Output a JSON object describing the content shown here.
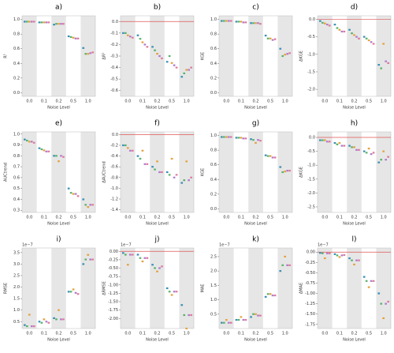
{
  "chart_data": [
    {
      "type": "box",
      "label": "a)",
      "ylabel": "R²",
      "xlabel": "Noise Level",
      "categories": [
        "0.0",
        "0.1",
        "0.2",
        "0.5",
        "1.0"
      ],
      "ylim": [
        -0.05,
        1.05
      ],
      "yticks": [
        {
          "value": 0,
          "label": "0.0"
        },
        0.2,
        0.4,
        0.6,
        0.8,
        {
          "value": 1,
          "label": "1.0"
        }
      ],
      "series": [
        {
          "color": "#3a8fb7",
          "values": [
            0.97,
            0.96,
            0.93,
            0.77,
            0.61
          ]
        },
        {
          "color": "#59b36b",
          "values": [
            0.97,
            0.96,
            0.94,
            0.76,
            0.53
          ]
        },
        {
          "color": "#e5a13b",
          "values": [
            0.97,
            0.96,
            0.94,
            0.75,
            0.53
          ]
        },
        {
          "color": "#b07ad0",
          "values": [
            0.97,
            0.96,
            0.94,
            0.74,
            0.54
          ]
        },
        {
          "color": "#e07a9a",
          "values": [
            0.97,
            0.96,
            0.94,
            0.74,
            0.55
          ]
        }
      ]
    },
    {
      "type": "box",
      "label": "b)",
      "ylabel": "ΔR²",
      "xlabel": "Noise Level",
      "categories": [
        "0.0",
        "0.1",
        "0.2",
        "0.5",
        "1.0"
      ],
      "refline": 0,
      "ylim": [
        -0.65,
        0.05
      ],
      "yticks": [
        {
          "value": 0,
          "label": "0.0"
        },
        -0.1,
        -0.2,
        -0.3,
        -0.4,
        -0.5,
        -0.6
      ],
      "series": [
        {
          "color": "#3a8fb7",
          "values": [
            -0.1,
            -0.12,
            -0.22,
            -0.35,
            -0.48
          ]
        },
        {
          "color": "#59b36b",
          "values": [
            -0.1,
            -0.15,
            -0.25,
            -0.3,
            -0.45
          ]
        },
        {
          "color": "#e5a13b",
          "values": [
            -0.12,
            -0.18,
            -0.28,
            -0.36,
            -0.42
          ]
        },
        {
          "color": "#b07ad0",
          "values": [
            -0.13,
            -0.2,
            -0.3,
            -0.38,
            -0.42
          ]
        },
        {
          "color": "#e07a9a",
          "values": [
            -0.14,
            -0.22,
            -0.32,
            -0.4,
            -0.4
          ]
        }
      ]
    },
    {
      "type": "box",
      "label": "c)",
      "ylabel": "KGE",
      "xlabel": "Noise Level",
      "categories": [
        "0.0",
        "0.1",
        "0.2",
        "0.5",
        "1.0"
      ],
      "ylim": [
        -0.05,
        1.05
      ],
      "yticks": [
        {
          "value": 0,
          "label": "0.0"
        },
        0.2,
        0.4,
        0.6,
        0.8,
        {
          "value": 1,
          "label": "1.0"
        }
      ],
      "series": [
        {
          "color": "#3a8fb7",
          "values": [
            0.98,
            0.97,
            0.95,
            0.78,
            0.6
          ]
        },
        {
          "color": "#59b36b",
          "values": [
            0.98,
            0.97,
            0.95,
            0.74,
            0.5
          ]
        },
        {
          "color": "#e5a13b",
          "values": [
            0.98,
            0.97,
            0.95,
            0.74,
            0.52
          ]
        },
        {
          "color": "#b07ad0",
          "values": [
            0.98,
            0.96,
            0.95,
            0.72,
            0.53
          ]
        },
        {
          "color": "#e07a9a",
          "values": [
            0.98,
            0.96,
            0.94,
            0.73,
            0.54
          ]
        }
      ]
    },
    {
      "type": "box",
      "label": "d)",
      "ylabel": "ΔKGE",
      "xlabel": "Noise Level",
      "categories": [
        "0.0",
        "0.1",
        "0.2",
        "0.5",
        "1.0"
      ],
      "refline": 0,
      "ylim": [
        -2.2,
        0.1
      ],
      "yticks": [
        {
          "value": 0,
          "label": "0.0"
        },
        -0.5,
        {
          "value": -1,
          "label": "-1.0"
        },
        -1.5,
        {
          "value": -2,
          "label": "-2.0"
        }
      ],
      "series": [
        {
          "color": "#3a8fb7",
          "values": [
            -0.05,
            -0.15,
            -0.3,
            -0.5,
            -1.3
          ]
        },
        {
          "color": "#59b36b",
          "values": [
            -0.1,
            -0.25,
            -0.4,
            -0.55,
            -1.4
          ]
        },
        {
          "color": "#e5a13b",
          "values": [
            -0.12,
            -0.3,
            -0.45,
            -0.6,
            -0.7
          ]
        },
        {
          "color": "#b07ad0",
          "values": [
            -0.15,
            -0.35,
            -0.5,
            -0.65,
            -1.2
          ]
        },
        {
          "color": "#e07a9a",
          "values": [
            -0.18,
            -0.35,
            -0.55,
            -0.7,
            -1.25
          ]
        }
      ]
    },
    {
      "type": "box",
      "label": "e)",
      "ylabel": "AUCtrend",
      "xlabel": "Noise Level",
      "categories": [
        "0.0",
        "0.1",
        "0.2",
        "0.5",
        "1.0"
      ],
      "ylim": [
        0.28,
        1.02
      ],
      "yticks": [
        0.3,
        0.4,
        0.5,
        0.6,
        0.7,
        0.8,
        0.9,
        {
          "value": 1,
          "label": "1.0"
        }
      ],
      "series": [
        {
          "color": "#3a8fb7",
          "values": [
            0.95,
            0.87,
            0.8,
            0.5,
            0.4
          ]
        },
        {
          "color": "#59b36b",
          "values": [
            0.94,
            0.86,
            0.8,
            0.46,
            0.35
          ]
        },
        {
          "color": "#e5a13b",
          "values": [
            0.93,
            0.85,
            0.75,
            0.45,
            0.33
          ]
        },
        {
          "color": "#b07ad0",
          "values": [
            0.93,
            0.84,
            0.8,
            0.45,
            0.35
          ]
        },
        {
          "color": "#e07a9a",
          "values": [
            0.92,
            0.84,
            0.79,
            0.43,
            0.35
          ]
        }
      ]
    },
    {
      "type": "box",
      "label": "f)",
      "ylabel": "ΔAUCtrend",
      "xlabel": "Noise Level",
      "categories": [
        "0.0",
        "0.1",
        "0.2",
        "0.5",
        "1.0"
      ],
      "refline": 0,
      "ylim": [
        -1.45,
        0.05
      ],
      "yticks": [
        {
          "value": 0,
          "label": "0.0"
        },
        -0.2,
        -0.4,
        -0.6,
        -0.8,
        {
          "value": -1,
          "label": "-1.0"
        },
        -1.2,
        -1.4
      ],
      "series": [
        {
          "color": "#3a8fb7",
          "values": [
            -0.2,
            -0.4,
            -0.6,
            -0.7,
            -0.9
          ]
        },
        {
          "color": "#59b36b",
          "values": [
            -0.2,
            -0.45,
            -0.65,
            -0.75,
            -0.85
          ]
        },
        {
          "color": "#e5a13b",
          "values": [
            -0.25,
            -0.3,
            -0.5,
            -0.45,
            -0.5
          ]
        },
        {
          "color": "#b07ad0",
          "values": [
            -0.3,
            -0.55,
            -0.7,
            -0.8,
            -0.85
          ]
        },
        {
          "color": "#e07a9a",
          "values": [
            -0.3,
            -0.55,
            -0.7,
            -0.75,
            -0.8
          ]
        }
      ]
    },
    {
      "type": "box",
      "label": "g)",
      "ylabel": "KGE",
      "xlabel": "Noise Level",
      "categories": [
        "0.0",
        "0.1",
        "0.2",
        "0.5",
        "1.0"
      ],
      "ylim": [
        -0.05,
        1.05
      ],
      "yticks": [
        {
          "value": 0,
          "label": "0.0"
        },
        0.2,
        0.4,
        0.6,
        0.8,
        {
          "value": 1,
          "label": "1.0"
        }
      ],
      "series": [
        {
          "color": "#3a8fb7",
          "values": [
            0.98,
            0.97,
            0.95,
            0.73,
            0.57
          ]
        },
        {
          "color": "#59b36b",
          "values": [
            0.98,
            0.97,
            0.94,
            0.72,
            0.5
          ]
        },
        {
          "color": "#e5a13b",
          "values": [
            0.98,
            0.97,
            0.9,
            0.72,
            0.51
          ]
        },
        {
          "color": "#b07ad0",
          "values": [
            0.98,
            0.96,
            0.94,
            0.7,
            0.52
          ]
        },
        {
          "color": "#e07a9a",
          "values": [
            0.98,
            0.96,
            0.93,
            0.7,
            0.52
          ]
        }
      ]
    },
    {
      "type": "box",
      "label": "h)",
      "ylabel": "ΔKGE",
      "xlabel": "Noise Level",
      "categories": [
        "0.0",
        "0.1",
        "0.2",
        "0.5",
        "1.0"
      ],
      "refline": 0,
      "ylim": [
        -2.7,
        0.2
      ],
      "yticks": [
        {
          "value": 0,
          "label": "0.0"
        },
        -0.5,
        {
          "value": -1,
          "label": "-1.0"
        },
        -1.5,
        {
          "value": -2,
          "label": "-2.0"
        },
        -2.5
      ],
      "series": [
        {
          "color": "#3a8fb7",
          "values": [
            -0.1,
            -0.2,
            -0.3,
            -0.5,
            -0.9
          ]
        },
        {
          "color": "#59b36b",
          "values": [
            -0.1,
            -0.25,
            -0.35,
            -0.55,
            -0.8
          ]
        },
        {
          "color": "#e5a13b",
          "values": [
            -0.1,
            -0.2,
            -0.35,
            -0.4,
            -0.5
          ]
        },
        {
          "color": "#b07ad0",
          "values": [
            -0.15,
            -0.3,
            -0.45,
            -0.6,
            -0.8
          ]
        },
        {
          "color": "#e07a9a",
          "values": [
            -0.15,
            -0.3,
            -0.45,
            -0.55,
            -0.7
          ]
        }
      ]
    },
    {
      "type": "box",
      "label": "i)",
      "ylabel": "RMSE",
      "xlabel": "Noise Level",
      "offset_text": "1e−7",
      "categories": [
        "0.0",
        "0.1",
        "0.2",
        "0.5",
        "1.0"
      ],
      "ylim": [
        0.2,
        3.7
      ],
      "yticks": [
        0.5,
        {
          "value": 1,
          "label": "1.0"
        },
        1.5,
        {
          "value": 2,
          "label": "2.0"
        },
        2.5,
        {
          "value": 3,
          "label": "3.0"
        },
        3.5
      ],
      "series": [
        {
          "color": "#3a8fb7",
          "values": [
            0.35,
            0.5,
            0.65,
            1.8,
            3.0
          ]
        },
        {
          "color": "#59b36b",
          "values": [
            0.3,
            0.45,
            0.6,
            1.8,
            3.2
          ]
        },
        {
          "color": "#e5a13b",
          "values": [
            0.8,
            0.6,
            1.0,
            1.9,
            3.4
          ]
        },
        {
          "color": "#b07ad0",
          "values": [
            0.3,
            0.5,
            0.6,
            1.75,
            3.2
          ]
        },
        {
          "color": "#e07a9a",
          "values": [
            0.3,
            0.45,
            0.6,
            1.7,
            3.2
          ]
        }
      ]
    },
    {
      "type": "box",
      "label": "j)",
      "ylabel": "ΔRMSE",
      "xlabel": "Noise Level",
      "offset_text": "1e−7",
      "categories": [
        "0.0",
        "0.1",
        "0.2",
        "0.5",
        "1.0"
      ],
      "refline": 0,
      "ylim": [
        -2.3,
        0.1
      ],
      "yticks": [
        {
          "value": 0,
          "label": "0.00"
        },
        -0.25,
        {
          "value": -0.5,
          "label": "-0.50"
        },
        -0.75,
        {
          "value": -1,
          "label": "-1.00"
        },
        -1.25,
        {
          "value": -1.5,
          "label": "-1.50"
        },
        -1.75,
        {
          "value": -2,
          "label": "-2.00"
        }
      ],
      "series": [
        {
          "color": "#3a8fb7",
          "values": [
            -0.05,
            -0.1,
            -0.4,
            -1.1,
            -1.6
          ]
        },
        {
          "color": "#59b36b",
          "values": [
            -0.1,
            -0.2,
            -0.5,
            -1.2,
            -1.9
          ]
        },
        {
          "color": "#e5a13b",
          "values": [
            -0.4,
            -0.3,
            -0.6,
            -1.3,
            -2.3
          ]
        },
        {
          "color": "#b07ad0",
          "values": [
            -0.1,
            -0.2,
            -0.5,
            -1.2,
            -1.9
          ]
        },
        {
          "color": "#e07a9a",
          "values": [
            -0.1,
            -0.2,
            -0.45,
            -1.2,
            -1.9
          ]
        }
      ]
    },
    {
      "type": "box",
      "label": "k)",
      "ylabel": "MAE",
      "xlabel": "Noise Level",
      "offset_text": "1e−7",
      "categories": [
        "0.0",
        "0.1",
        "0.2",
        "0.5",
        "1.0"
      ],
      "ylim": [
        0,
        2.8
      ],
      "yticks": [
        0.5,
        {
          "value": 1,
          "label": "1.0"
        },
        1.5,
        {
          "value": 2,
          "label": "2.0"
        },
        2.5
      ],
      "series": [
        {
          "color": "#3a8fb7",
          "values": [
            0.2,
            0.3,
            0.4,
            1.1,
            2.0
          ]
        },
        {
          "color": "#59b36b",
          "values": [
            0.2,
            0.3,
            0.5,
            1.2,
            2.2
          ]
        },
        {
          "color": "#e5a13b",
          "values": [
            0.3,
            0.4,
            0.5,
            1.2,
            2.5
          ]
        },
        {
          "color": "#b07ad0",
          "values": [
            0.2,
            0.3,
            0.45,
            1.15,
            2.2
          ]
        },
        {
          "color": "#e07a9a",
          "values": [
            0.2,
            0.3,
            0.45,
            1.15,
            2.2
          ]
        }
      ]
    },
    {
      "type": "box",
      "label": "l)",
      "ylabel": "ΔMAE",
      "xlabel": "Noise Level",
      "offset_text": "1e−7",
      "categories": [
        "0.0",
        "0.1",
        "0.2",
        "0.5",
        "1.0"
      ],
      "refline": 0,
      "ylim": [
        -1.85,
        0.1
      ],
      "yticks": [
        {
          "value": 0,
          "label": "0.00"
        },
        -0.25,
        {
          "value": -0.5,
          "label": "-0.50"
        },
        -0.75,
        {
          "value": -1,
          "label": "-1.00"
        },
        -1.25,
        {
          "value": -1.5,
          "label": "-1.50"
        },
        -1.75
      ],
      "series": [
        {
          "color": "#3a8fb7",
          "values": [
            -0.02,
            -0.05,
            -0.15,
            -0.6,
            -1.0
          ]
        },
        {
          "color": "#59b36b",
          "values": [
            -0.03,
            -0.08,
            -0.2,
            -0.7,
            -1.25
          ]
        },
        {
          "color": "#e5a13b",
          "values": [
            -0.15,
            -0.12,
            -0.3,
            -0.85,
            -1.6
          ]
        },
        {
          "color": "#b07ad0",
          "values": [
            -0.03,
            -0.08,
            -0.2,
            -0.7,
            -1.25
          ]
        },
        {
          "color": "#e07a9a",
          "values": [
            -0.03,
            -0.07,
            -0.2,
            -0.7,
            -1.2
          ]
        }
      ]
    }
  ]
}
